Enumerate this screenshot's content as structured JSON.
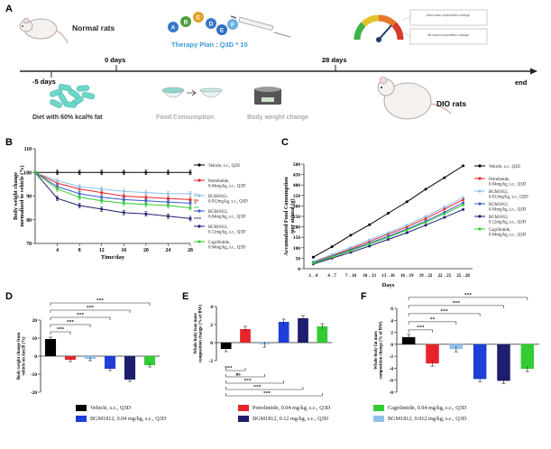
{
  "panel_labels": {
    "a": "A",
    "b": "B",
    "c": "C",
    "d": "D",
    "e": "E",
    "f": "F"
  },
  "timeline": {
    "normal_rats": "Normal rats",
    "therapy_plan": "Therapy Plan : Q3D * 10",
    "peptide_letters": [
      "A",
      "B",
      "C",
      "D",
      "E",
      "F"
    ],
    "peptide_colors": [
      "#3a77c9",
      "#4e9e3c",
      "#e0a32a",
      "#3a77c9",
      "#2b6fc0",
      "#6ab0e0"
    ],
    "gauge_box_1": "lean mass composition change",
    "gauge_box_2": "fat mass composition change",
    "gauge_colors": [
      "#3fb24a",
      "#e5c22b",
      "#e2792b",
      "#d63a2a"
    ],
    "t_minus5": "-5 days",
    "t0": "0 days",
    "t28": "28 days",
    "t_end": "end",
    "diet": "Diet with 60% kcal% fat",
    "food": "Food Consumption",
    "bw": "Body weight change",
    "dio": "DIO rats",
    "pellet_color": "#6cd6c8"
  },
  "chart_data": [
    {
      "id": "B",
      "type": "line",
      "ylabel": "Body weight change\nnormalized to vehicle (%)",
      "xlabel": "Time/day",
      "x": [
        0,
        4,
        8,
        12,
        16,
        20,
        24,
        28
      ],
      "xlim": [
        0,
        28
      ],
      "ylim": [
        70,
        110
      ],
      "yticks": [
        70,
        80,
        90,
        100,
        110
      ],
      "xticks": [
        4,
        8,
        12,
        16,
        20,
        24,
        28
      ],
      "series": [
        {
          "name": "Vehicle, s.c., Q3D",
          "color": "#000000",
          "values": [
            100,
            100,
            100,
            100,
            100,
            100,
            100,
            100
          ],
          "sig": ""
        },
        {
          "name": "Petrelintide,\n0.04mg/kg, s.c., Q3D",
          "color": "#e8242a",
          "values": [
            100,
            95.5,
            93,
            91.5,
            90,
            89.5,
            89,
            88.5
          ],
          "sig": "ns"
        },
        {
          "name": "BGM1812,\n0.012mg/kg, s.c., Q3D",
          "color": "#8ec1ea",
          "values": [
            100,
            96.5,
            94,
            93,
            92,
            91.5,
            91,
            91
          ],
          "sig": "ns"
        },
        {
          "name": "BGM1812,\n0.04mg/kg, s.c., Q3D",
          "color": "#3b5cc7",
          "values": [
            100,
            94,
            91,
            89.5,
            88.5,
            88,
            87.5,
            87
          ],
          "sig": "*"
        },
        {
          "name": "BGM1812,\n0.12mg/kg, s.c., Q3D",
          "color": "#1e1e6e",
          "values": [
            100,
            89,
            86,
            84.5,
            83,
            82.5,
            81.5,
            80.5
          ],
          "sig": "***"
        },
        {
          "name": "Cagrilintide,\n0.04mg/kg, s.c., Q3D",
          "color": "#33cc33",
          "values": [
            100,
            93,
            89.5,
            88,
            87,
            86.5,
            86,
            85
          ],
          "sig": "**"
        }
      ]
    },
    {
      "id": "C",
      "type": "line",
      "ylabel": "Accumulated Food Consumption\n/per animal (g)",
      "xlabel": "Days",
      "categories": [
        "1→4",
        "4→7",
        "7→10",
        "10→13",
        "13→16",
        "16→19",
        "19→22",
        "22→25",
        "25→28"
      ],
      "ylim": [
        0,
        500
      ],
      "yticks": [
        0,
        50,
        100,
        150,
        200,
        250,
        300,
        350,
        400,
        450,
        500
      ],
      "series": [
        {
          "name": "Vehicle, s.c., Q3D",
          "color": "#000000",
          "values": [
            55,
            105,
            160,
            210,
            265,
            320,
            380,
            435,
            492
          ]
        },
        {
          "name": "Petrelintide,\n0.04mg/kg, s.c., Q3D",
          "color": "#e8242a",
          "values": [
            30,
            62,
            95,
            130,
            165,
            200,
            240,
            285,
            330
          ]
        },
        {
          "name": "BGM1812,\n0.012mg/kg, s.c., Q3D",
          "color": "#8ec1ea",
          "values": [
            34,
            68,
            102,
            138,
            172,
            208,
            250,
            295,
            340
          ]
        },
        {
          "name": "BGM1812,\n0.04mg/kg, s.c., Q3D",
          "color": "#3b5cc7",
          "values": [
            28,
            58,
            90,
            122,
            155,
            190,
            228,
            270,
            315
          ]
        },
        {
          "name": "BGM1812,\n0.12mg/kg, s.c., Q3D",
          "color": "#1e1e6e",
          "values": [
            22,
            50,
            78,
            108,
            140,
            172,
            208,
            245,
            283
          ]
        },
        {
          "name": "Cagrilintide,\n0.04mg/kg, s.c., Q3D",
          "color": "#33cc33",
          "values": [
            26,
            56,
            86,
            118,
            150,
            185,
            222,
            262,
            305
          ]
        }
      ]
    },
    {
      "id": "D",
      "type": "bar",
      "ylabel": "Body weight change from\nvehicle on day28 (%)",
      "ylim": [
        -20,
        20
      ],
      "yticks": [
        -20,
        -10,
        0,
        10,
        20
      ],
      "values": [
        9.5,
        -2,
        -1.5,
        -7,
        -13,
        -5
      ],
      "colors": [
        "#000000",
        "#e8242a",
        "#8ec1ea",
        "#1f3fd8",
        "#1e1e6e",
        "#33cc33"
      ],
      "sig_labels": [
        "***",
        "***",
        "***",
        "***",
        "***"
      ]
    },
    {
      "id": "E",
      "type": "bar",
      "ylabel": "Whole body lean mass\ncomposition change (% of BW)",
      "ylim": [
        -2,
        4
      ],
      "yticks": [
        -2,
        0,
        2,
        4
      ],
      "values": [
        -0.7,
        1.5,
        -0.2,
        2.3,
        2.7,
        1.8
      ],
      "colors": [
        "#000000",
        "#e8242a",
        "#8ec1ea",
        "#1f3fd8",
        "#1e1e6e",
        "#33cc33"
      ],
      "sig_labels": [
        "***",
        "ns",
        "***",
        "***",
        "***"
      ]
    },
    {
      "id": "F",
      "type": "bar",
      "ylabel": "Whole body fat mass\ncomposition change (% of BW)",
      "ylim": [
        -8,
        6
      ],
      "yticks": [
        -8,
        -6,
        -4,
        -2,
        0,
        2,
        4,
        6
      ],
      "values": [
        1.2,
        -3.2,
        -0.8,
        -5.8,
        -6.1,
        -4.1
      ],
      "colors": [
        "#000000",
        "#e8242a",
        "#8ec1ea",
        "#1f3fd8",
        "#1e1e6e",
        "#33cc33"
      ],
      "sig_labels": [
        "***",
        "**",
        "***",
        "***",
        "***"
      ]
    }
  ],
  "legend": [
    {
      "label": "Vehicle, s.c., Q3D",
      "color": "#000000"
    },
    {
      "label": "Petrelintide, 0.04 mg/kg, s.c., Q3D",
      "color": "#e8242a"
    },
    {
      "label": "Cagrilintide, 0.04 mg/kg, s.c., Q3D",
      "color": "#33cc33"
    },
    {
      "label": "BGM1812, 0.04 mg/kg, s.c., Q3D",
      "color": "#1f3fd8"
    },
    {
      "label": "BGM1812, 0.12 mg/kg, s.c., Q3D",
      "color": "#1e1e6e"
    },
    {
      "label": "BGM1812, 0.012 mg/kg, s.c., Q3D",
      "color": "#8ec1ea"
    }
  ]
}
